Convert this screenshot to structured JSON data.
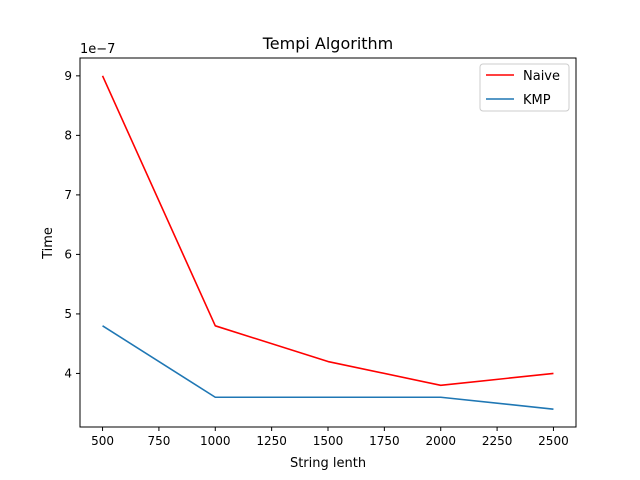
{
  "chart_data": {
    "type": "line",
    "title": "Tempi Algorithm",
    "xlabel": "String lenth",
    "ylabel": "Time",
    "y_offset_label": "1e−7",
    "x": [
      500,
      1000,
      1500,
      2000,
      2500
    ],
    "series": [
      {
        "name": "Naive",
        "color": "#ff0000",
        "values": [
          9e-07,
          4.8e-07,
          4.2e-07,
          3.8e-07,
          4e-07
        ]
      },
      {
        "name": "KMP",
        "color": "#1f77b4",
        "values": [
          4.8e-07,
          3.6e-07,
          3.6e-07,
          3.6e-07,
          3.4e-07
        ]
      }
    ],
    "xlim": [
      400,
      2600
    ],
    "ylim": [
      3.1e-07,
      9.3e-07
    ],
    "xticks": [
      "500",
      "750",
      "1000",
      "1250",
      "1500",
      "1750",
      "2000",
      "2250",
      "2500"
    ],
    "yticks": [
      "4",
      "5",
      "6",
      "7",
      "8",
      "9"
    ],
    "grid": false,
    "legend_position": "upper right"
  }
}
